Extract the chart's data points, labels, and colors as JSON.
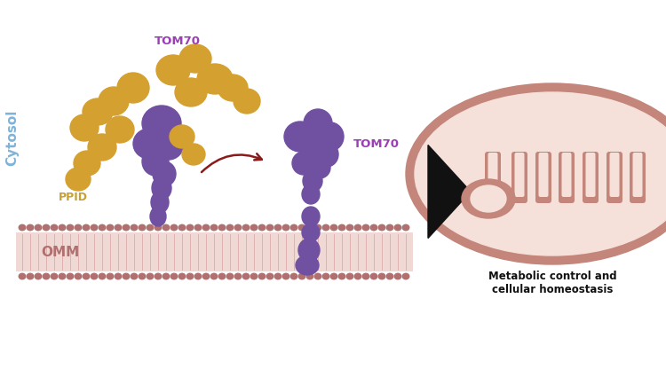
{
  "background_color": "#ffffff",
  "cytosol_label": "Cytosol",
  "cytosol_color": "#7eb3d8",
  "omm_label": "OMM",
  "omm_color": "#b07070",
  "omm_fill": "#f0d8d4",
  "omm_stripe_color": "#d4a0a0",
  "tom70_label_1": "TOM70",
  "tom70_label_2": "TOM70",
  "tom70_color_label": "#9b3fb5",
  "ppid_label": "PPID",
  "ppid_color_label": "#c8a030",
  "chaperone_color": "#d4a030",
  "tom70_protein_color": "#7050a0",
  "arrow_color": "#8b1a1a",
  "mito_outer_color": "#c4857a",
  "mito_inner_fill": "#f5e0da",
  "mito_crista_color": "#c4857a",
  "metabolic_label": "Metabolic control and\ncellular homeostasis",
  "arrow_triangle_color": "#111111",
  "figsize": [
    7.5,
    4.35
  ],
  "dpi": 100
}
